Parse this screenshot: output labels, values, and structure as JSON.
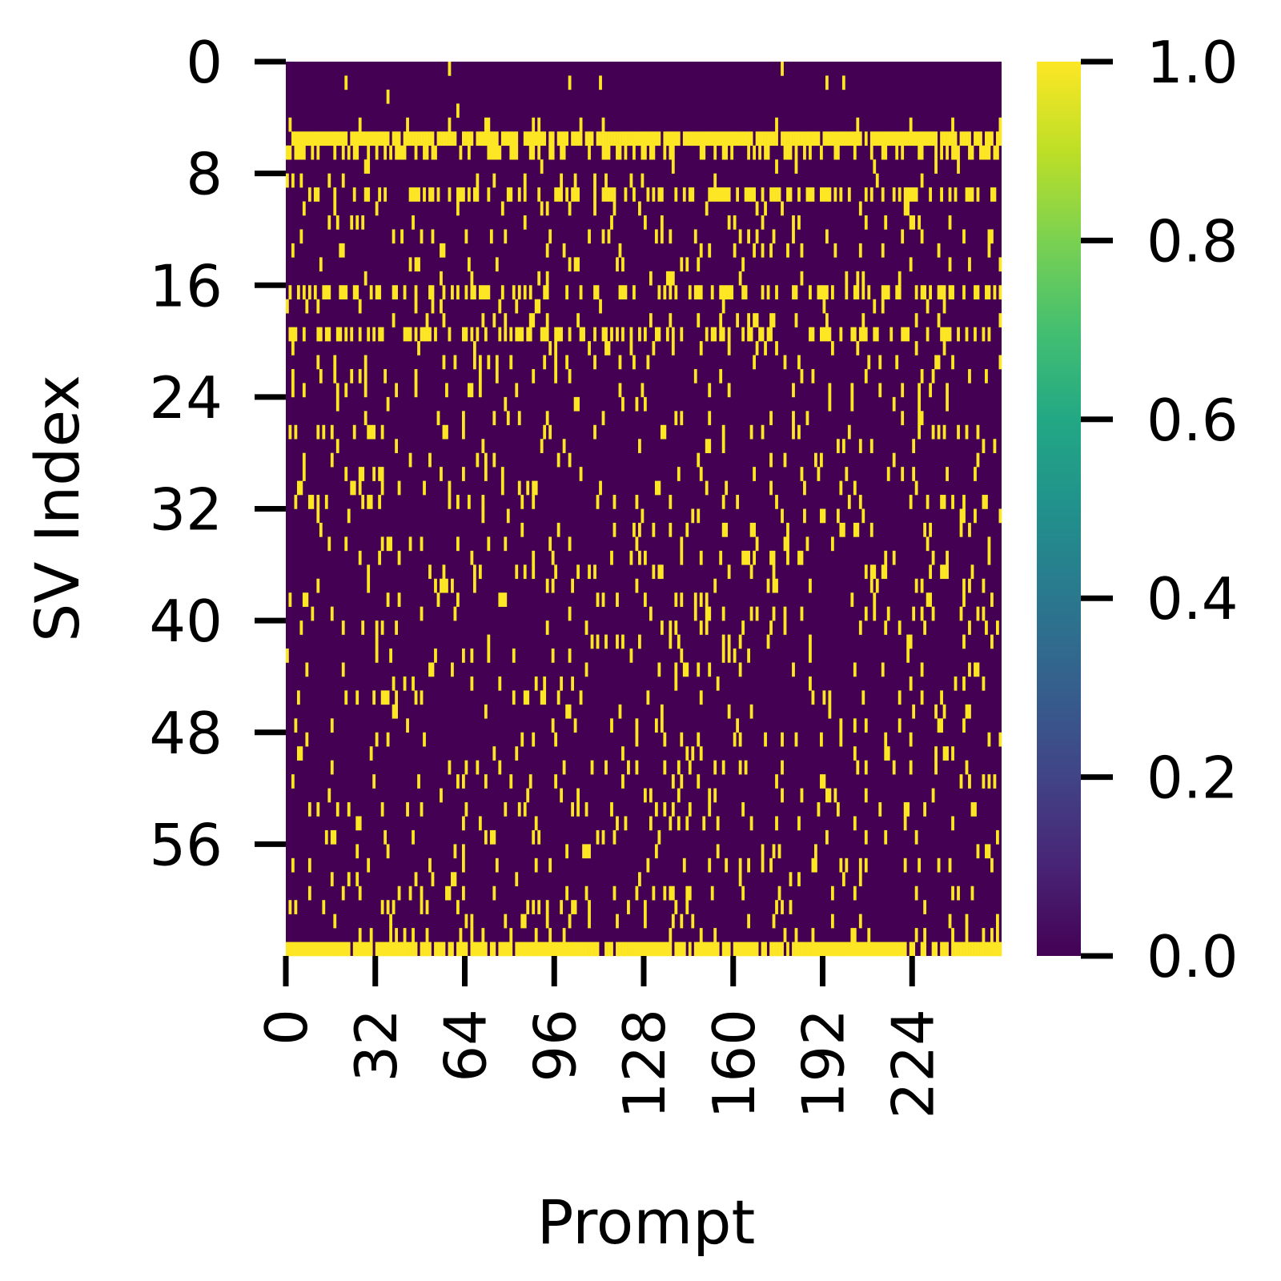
{
  "chart_data": {
    "type": "heatmap",
    "title": "",
    "xlabel": "Prompt",
    "ylabel": "SV Index",
    "n_cols": 256,
    "n_rows": 64,
    "x_ticks": [
      0,
      32,
      64,
      96,
      128,
      160,
      192,
      224
    ],
    "y_ticks": [
      0,
      8,
      16,
      24,
      32,
      40,
      48,
      56
    ],
    "value_range": [
      0.0,
      1.0
    ],
    "colormap": "viridis",
    "colorbar": {
      "ticks": [
        "0.0",
        "0.2",
        "0.4",
        "0.6",
        "0.8",
        "1.0"
      ],
      "low_color": "#440154",
      "high_color": "#fde725"
    },
    "binary_values": true,
    "rows_mostly_one": [
      5,
      63
    ],
    "dense_rows": [
      6,
      9,
      16,
      19
    ],
    "rows_mostly_zero": [
      0,
      1,
      2,
      3
    ],
    "values_note_sparse_random": "remaining rows contain scattered 1-valued cells (roughly 5-15% density) on a 0-valued background"
  }
}
